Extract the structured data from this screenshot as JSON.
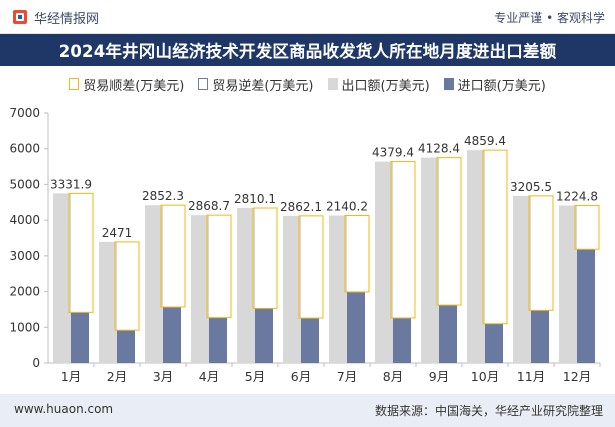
{
  "header": {
    "brand": "华经情报网",
    "tagline": "专业严谨 • 客观科学"
  },
  "title": "2024年井冈山经济技术开发区商品收发货人所在地月度进出口差额",
  "legend": {
    "surplus": "贸易顺差(万美元)",
    "deficit": "贸易逆差(万美元)",
    "export": "出口额(万美元)",
    "import": "进口额(万美元)"
  },
  "footer": {
    "website": "www.huaon.com",
    "source": "数据来源：中国海关，华经产业研究院整理"
  },
  "colors": {
    "title_bg": "#1e3766",
    "export": "#d8d8d8",
    "import": "#6a79a0",
    "surplus_line": "#f2b90f",
    "footer_bg": "#e9eef6"
  },
  "chart_data": {
    "type": "bar",
    "categories": [
      "1月",
      "2月",
      "3月",
      "4月",
      "5月",
      "6月",
      "7月",
      "8月",
      "9月",
      "10月",
      "11月",
      "12月"
    ],
    "series": [
      {
        "name": "出口额(万美元)",
        "values": [
          4750,
          3390,
          4420,
          4140,
          4340,
          4120,
          4130,
          5640,
          5750,
          5960,
          4680,
          4410
        ]
      },
      {
        "name": "进口额(万美元)",
        "values": [
          1418,
          919,
          1568,
          1271,
          1530,
          1258,
          1990,
          1261,
          1622,
          1100,
          1475,
          3185
        ]
      },
      {
        "name": "贸易顺差(万美元)",
        "values": [
          3331.9,
          2471,
          2852.3,
          2868.7,
          2810.1,
          2862.1,
          2140.2,
          4379.4,
          4128.4,
          4859.4,
          3205.5,
          1224.8
        ]
      }
    ],
    "surplus_labels": [
      "3331.9",
      "2471",
      "2852.3",
      "2868.7",
      "2810.1",
      "2862.1",
      "2140.2",
      "4379.4",
      "4128.4",
      "4859.4",
      "3205.5",
      "1224.8"
    ],
    "yticks": [
      "0",
      "1000",
      "2000",
      "3000",
      "4000",
      "5000",
      "6000",
      "7000"
    ],
    "ylim": [
      0,
      7000
    ],
    "grid": false,
    "legend_position": "top"
  }
}
